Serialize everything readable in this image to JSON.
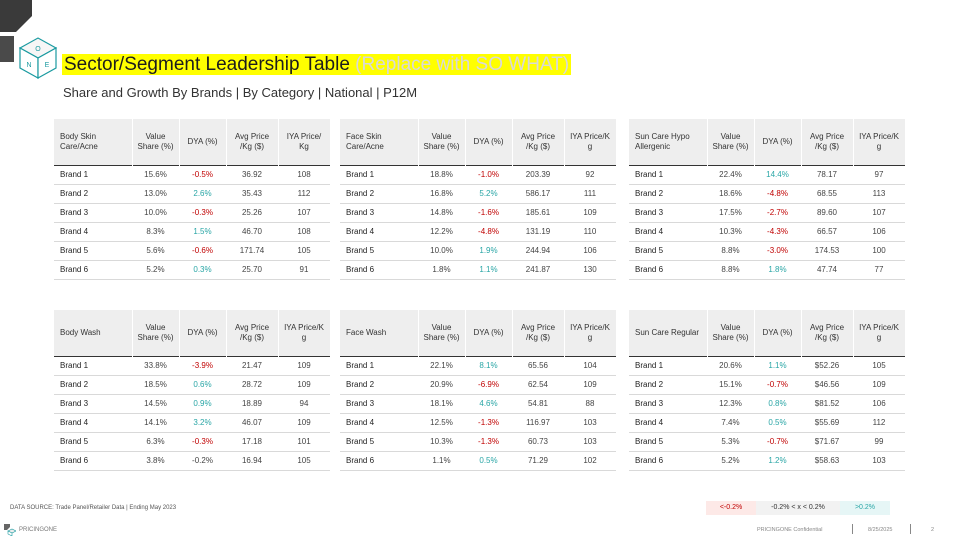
{
  "header": {
    "title_main": "Sector/Segment Leadership Table",
    "title_sowhat": "(Replace with SO WHAT)",
    "subtitle": "Share and Growth By Brands | By Category | National | P12M",
    "logo_letters": [
      "O",
      "N",
      "E"
    ]
  },
  "tables": {
    "t1": {
      "headers": [
        "Body Skin Care/Acne",
        "Value Share (%)",
        "DYA (%)",
        "Avg Price /Kg ($)",
        "IYA Price/ Kg"
      ],
      "rows": [
        [
          "Brand 1",
          "15.6%",
          "-0.5%",
          "36.92",
          "108"
        ],
        [
          "Brand 2",
          "13.0%",
          "2.6%",
          "35.43",
          "112"
        ],
        [
          "Brand 3",
          "10.0%",
          "-0.3%",
          "25.26",
          "107"
        ],
        [
          "Brand 4",
          "8.3%",
          "1.5%",
          "46.70",
          "108"
        ],
        [
          "Brand 5",
          "5.6%",
          "-0.6%",
          "171.74",
          "105"
        ],
        [
          "Brand 6",
          "5.2%",
          "0.3%",
          "25.70",
          "91"
        ]
      ],
      "dya_status": [
        "neg",
        "pos",
        "neg",
        "pos",
        "neg",
        "pos"
      ]
    },
    "t2": {
      "headers": [
        "Face Skin Care/Acne",
        "Value Share (%)",
        "DYA (%)",
        "Avg Price /Kg ($)",
        "IYA Price/K g"
      ],
      "rows": [
        [
          "Brand 1",
          "18.8%",
          "-1.0%",
          "203.39",
          "92"
        ],
        [
          "Brand 2",
          "16.8%",
          "5.2%",
          "586.17",
          "111"
        ],
        [
          "Brand 3",
          "14.8%",
          "-1.6%",
          "185.61",
          "109"
        ],
        [
          "Brand 4",
          "12.2%",
          "-4.8%",
          "131.19",
          "110"
        ],
        [
          "Brand 5",
          "10.0%",
          "1.9%",
          "244.94",
          "106"
        ],
        [
          "Brand 6",
          "1.8%",
          "1.1%",
          "241.87",
          "130"
        ]
      ],
      "dya_status": [
        "neg",
        "pos",
        "neg",
        "neg",
        "pos",
        "pos"
      ]
    },
    "t3": {
      "headers": [
        "Sun Care Hypo Allergenic",
        "Value Share (%)",
        "DYA (%)",
        "Avg Price /Kg ($)",
        "IYA Price/K g"
      ],
      "rows": [
        [
          "Brand 1",
          "22.4%",
          "14.4%",
          "78.17",
          "97"
        ],
        [
          "Brand 2",
          "18.6%",
          "-4.8%",
          "68.55",
          "113"
        ],
        [
          "Brand 3",
          "17.5%",
          "-2.7%",
          "89.60",
          "107"
        ],
        [
          "Brand 4",
          "10.3%",
          "-4.3%",
          "66.57",
          "106"
        ],
        [
          "Brand 5",
          "8.8%",
          "-3.0%",
          "174.53",
          "100"
        ],
        [
          "Brand 6",
          "8.8%",
          "1.8%",
          "47.74",
          "77"
        ]
      ],
      "dya_status": [
        "pos",
        "neg",
        "neg",
        "neg",
        "neg",
        "pos"
      ]
    },
    "t4": {
      "headers": [
        "Body Wash",
        "Value Share (%)",
        "DYA (%)",
        "Avg Price /Kg ($)",
        "IYA Price/K g"
      ],
      "rows": [
        [
          "Brand 1",
          "33.8%",
          "-3.9%",
          "21.47",
          "109"
        ],
        [
          "Brand 2",
          "18.5%",
          "0.6%",
          "28.72",
          "109"
        ],
        [
          "Brand 3",
          "14.5%",
          "0.9%",
          "18.89",
          "94"
        ],
        [
          "Brand 4",
          "14.1%",
          "3.2%",
          "46.07",
          "109"
        ],
        [
          "Brand 5",
          "6.3%",
          "-0.3%",
          "17.18",
          "101"
        ],
        [
          "Brand 6",
          "3.8%",
          "-0.2%",
          "16.94",
          "105"
        ]
      ],
      "dya_status": [
        "neg",
        "pos",
        "pos",
        "pos",
        "neg",
        "neu"
      ]
    },
    "t5": {
      "headers": [
        "Face Wash",
        "Value Share (%)",
        "DYA (%)",
        "Avg Price /Kg ($)",
        "IYA Price/K g"
      ],
      "rows": [
        [
          "Brand 1",
          "22.1%",
          "8.1%",
          "65.56",
          "104"
        ],
        [
          "Brand 2",
          "20.9%",
          "-6.9%",
          "62.54",
          "109"
        ],
        [
          "Brand 3",
          "18.1%",
          "4.6%",
          "54.81",
          "88"
        ],
        [
          "Brand 4",
          "12.5%",
          "-1.3%",
          "116.97",
          "103"
        ],
        [
          "Brand 5",
          "10.3%",
          "-1.3%",
          "60.73",
          "103"
        ],
        [
          "Brand 6",
          "1.1%",
          "0.5%",
          "71.29",
          "102"
        ]
      ],
      "dya_status": [
        "pos",
        "neg",
        "pos",
        "neg",
        "neg",
        "pos"
      ]
    },
    "t6": {
      "headers": [
        "Sun Care Regular",
        "Value Share (%)",
        "DYA (%)",
        "Avg Price /Kg ($)",
        "IYA Price/K g"
      ],
      "rows": [
        [
          "Brand 1",
          "20.6%",
          "1.1%",
          "$52.26",
          "105"
        ],
        [
          "Brand 2",
          "15.1%",
          "-0.7%",
          "$46.56",
          "109"
        ],
        [
          "Brand 3",
          "12.3%",
          "0.8%",
          "$81.52",
          "106"
        ],
        [
          "Brand 4",
          "7.4%",
          "0.5%",
          "$55.69",
          "112"
        ],
        [
          "Brand 5",
          "5.3%",
          "-0.7%",
          "$71.67",
          "99"
        ],
        [
          "Brand 6",
          "5.2%",
          "1.2%",
          "$58.63",
          "103"
        ]
      ],
      "dya_status": [
        "pos",
        "neg",
        "pos",
        "pos",
        "neg",
        "pos"
      ]
    }
  },
  "legend": {
    "neg": "<-0.2%",
    "neutral": "-0.2% < x < 0.2%",
    "pos": ">0.2%"
  },
  "footer": {
    "data_source": "DATA SOURCE: Trade Panel/Retailer Data | Ending May 2023",
    "brand_logo_text": "PRICINGONE",
    "confidential": "PRICINGONE Confidential",
    "date": "8/25/2025",
    "page_number": "2"
  },
  "colors": {
    "negative": "#c00000",
    "positive": "#2aa6a6",
    "highlight": "#ffff00",
    "header_bg": "#eeeeee"
  }
}
